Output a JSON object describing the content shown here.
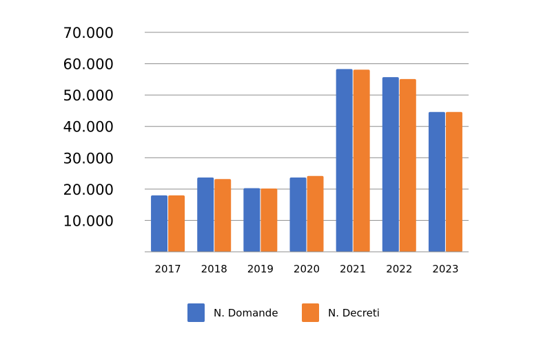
{
  "chart_data": {
    "type": "bar",
    "title": "",
    "xlabel": "",
    "ylabel": "",
    "categories": [
      "2017",
      "2018",
      "2019",
      "2020",
      "2021",
      "2022",
      "2023"
    ],
    "series": [
      {
        "name": "N. Domande",
        "color": "#4472C4",
        "values": [
          18000,
          23700,
          20300,
          23700,
          58300,
          55700,
          44600
        ]
      },
      {
        "name": "N. Decreti",
        "color": "#F07F2E",
        "values": [
          18000,
          23200,
          20200,
          24200,
          58100,
          55100,
          44600
        ]
      }
    ],
    "ylim": [
      0,
      70000
    ],
    "yticks": [
      10000,
      20000,
      30000,
      40000,
      50000,
      60000,
      70000
    ],
    "ytick_labels": [
      "10.000",
      "20.000",
      "30.000",
      "40.000",
      "50.000",
      "60.000",
      "70.000"
    ],
    "grid": true,
    "legend_position": "bottom"
  }
}
